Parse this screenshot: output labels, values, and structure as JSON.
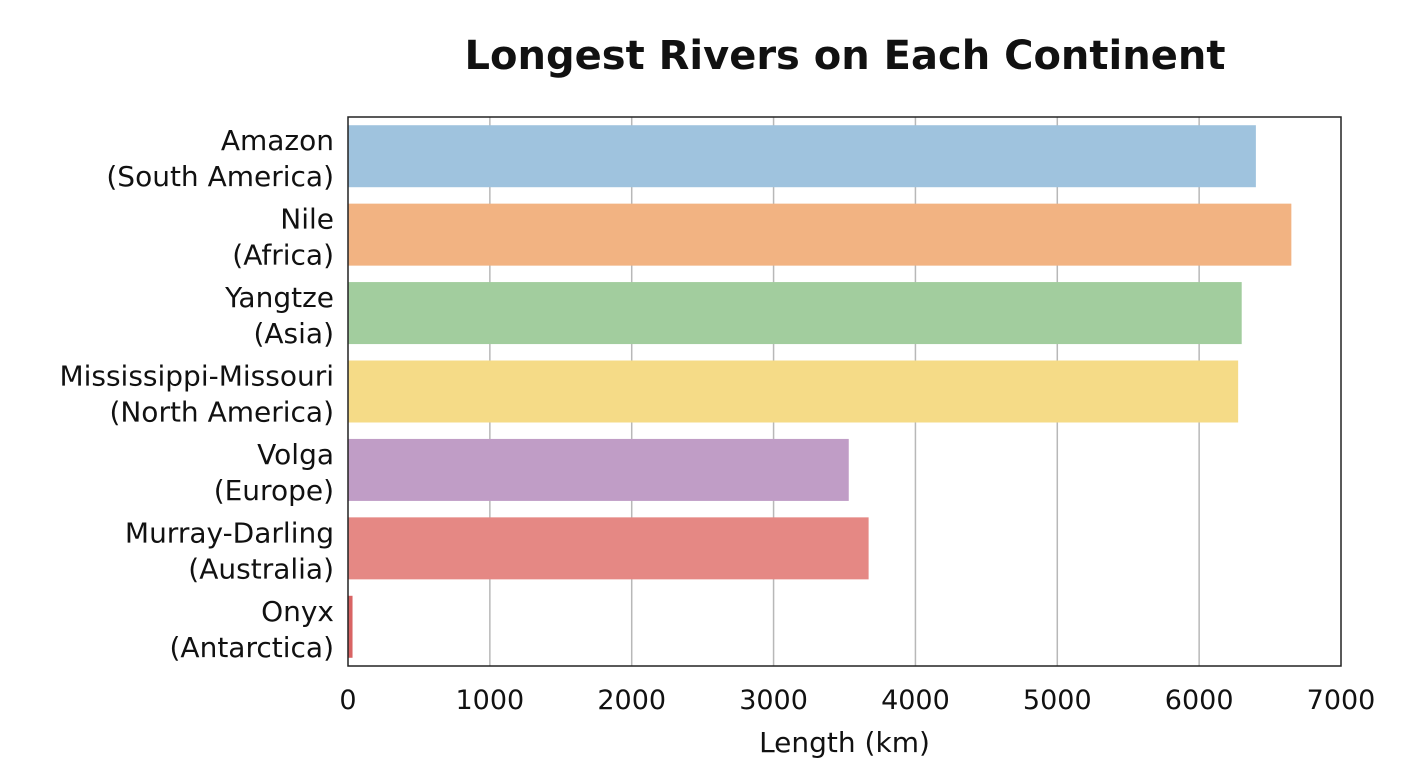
{
  "chart_data": {
    "type": "bar",
    "orientation": "horizontal",
    "title": "Longest Rivers on Each Continent",
    "xlabel": "Length (km)",
    "ylabel": "",
    "xlim": [
      0,
      7000
    ],
    "xticks": [
      0,
      1000,
      2000,
      3000,
      4000,
      5000,
      6000,
      7000
    ],
    "grid": "vertical",
    "legend": "none",
    "categories": [
      [
        "Amazon",
        "(South America)"
      ],
      [
        "Nile",
        "(Africa)"
      ],
      [
        "Yangtze",
        "(Asia)"
      ],
      [
        "Mississippi-Missouri",
        "(North America)"
      ],
      [
        "Volga",
        "(Europe)"
      ],
      [
        "Murray-Darling",
        "(Australia)"
      ],
      [
        "Onyx",
        "(Antarctica)"
      ]
    ],
    "values": [
      6400,
      6650,
      6300,
      6275,
      3530,
      3670,
      32
    ],
    "colors": [
      "#9fc3de",
      "#f2b382",
      "#a2cd9e",
      "#f5db87",
      "#c09dc6",
      "#e58884",
      "#d96464"
    ]
  }
}
